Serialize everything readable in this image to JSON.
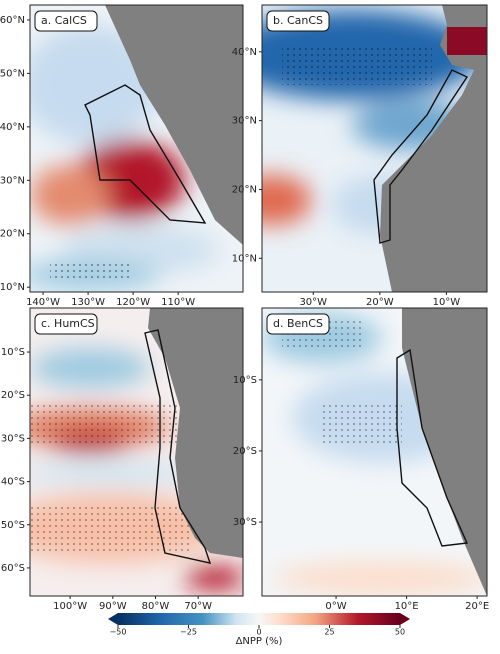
{
  "panels": [
    {
      "label": "a. CalCS",
      "xlim": [
        -142.9,
        -95.6
      ],
      "ylim": [
        9.1,
        62.8
      ],
      "xticks": [
        {
          "value": -140,
          "label": "140°W"
        },
        {
          "value": -130,
          "label": "130°W"
        },
        {
          "value": -120,
          "label": "120°W"
        },
        {
          "value": -110,
          "label": "110°W"
        }
      ],
      "yticks": [
        {
          "value": 60,
          "label": "60°N"
        },
        {
          "value": 50,
          "label": "50°N"
        },
        {
          "value": 40,
          "label": "40°N"
        },
        {
          "value": 30,
          "label": "30°N"
        },
        {
          "value": 20,
          "label": "20°N"
        },
        {
          "value": 10,
          "label": "10°N"
        }
      ]
    },
    {
      "label": "b. CanCS",
      "xlim": [
        -37.7,
        -3.9
      ],
      "ylim": [
        5.1,
        46.8
      ],
      "xticks": [
        {
          "value": -30,
          "label": "30°W"
        },
        {
          "value": -20,
          "label": "20°W"
        },
        {
          "value": -10,
          "label": "10°W"
        }
      ],
      "yticks": [
        {
          "value": 40,
          "label": "40°N"
        },
        {
          "value": 30,
          "label": "30°N"
        },
        {
          "value": 20,
          "label": "20°N"
        },
        {
          "value": 10,
          "label": "10°N"
        }
      ]
    },
    {
      "label": "c. HumCS",
      "xlim": [
        -109.4,
        -59.5
      ],
      "ylim": [
        -66.5,
        0.2
      ],
      "xticks": [
        {
          "value": -100,
          "label": "100°W"
        },
        {
          "value": -90,
          "label": "90°W"
        },
        {
          "value": -80,
          "label": "80°W"
        },
        {
          "value": -70,
          "label": "70°W"
        }
      ],
      "yticks": [
        {
          "value": -10,
          "label": "10°S"
        },
        {
          "value": -20,
          "label": "20°S"
        },
        {
          "value": -30,
          "label": "30°S"
        },
        {
          "value": -40,
          "label": "40°S"
        },
        {
          "value": -50,
          "label": "50°S"
        },
        {
          "value": -60,
          "label": "60°S"
        }
      ]
    },
    {
      "label": "d. BenCS",
      "xlim": [
        -10.5,
        21.4
      ],
      "ylim": [
        -40.4,
        0.1
      ],
      "xticks": [
        {
          "value": 0,
          "label": "0°W"
        },
        {
          "value": 10,
          "label": "10°E"
        },
        {
          "value": 20,
          "label": "20°E"
        }
      ],
      "yticks": [
        {
          "value": -10,
          "label": "10°S"
        },
        {
          "value": -20,
          "label": "20°S"
        },
        {
          "value": -30,
          "label": "30°S"
        }
      ]
    }
  ],
  "colorbar": {
    "label": "ΔNPP (%)",
    "lim": [
      -50,
      50
    ],
    "ticks": [
      {
        "value": -50,
        "label": "−50"
      },
      {
        "value": -25,
        "label": "−25"
      },
      0,
      25,
      50
    ]
  }
}
